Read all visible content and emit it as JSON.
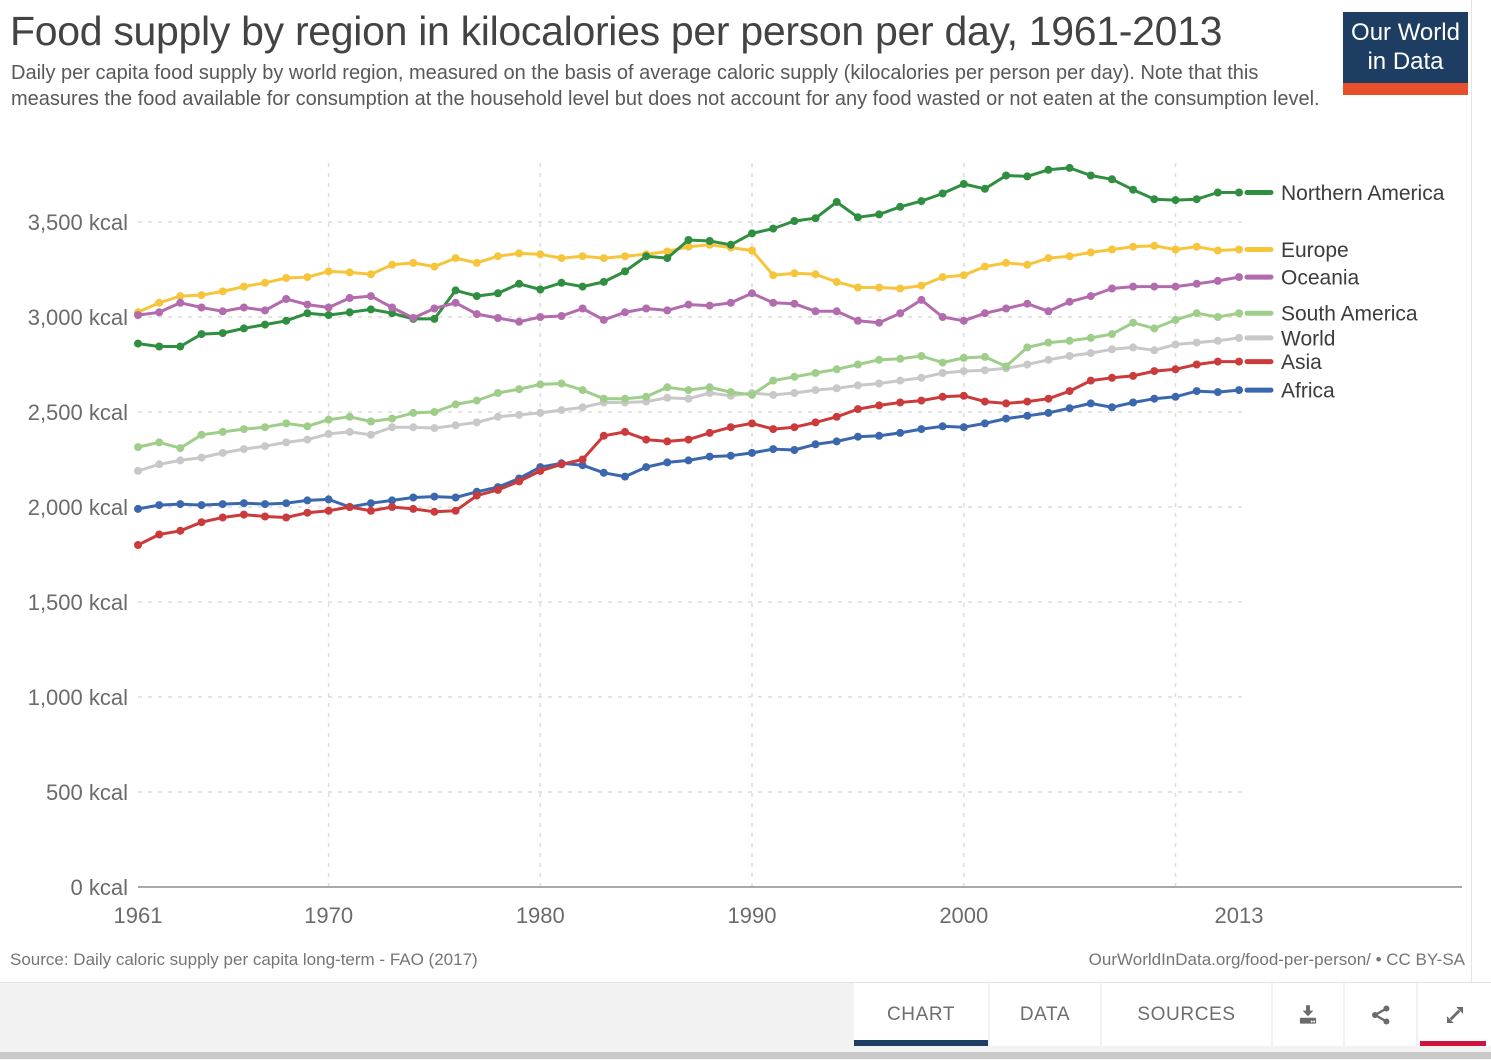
{
  "theme": {
    "navy": "#1D3D63",
    "logo_red": "#E8502B",
    "active_tab_underline": "#1D3D63",
    "expand_underline": "#D0123F",
    "gridline_color": "#DCDCDC",
    "axis_color": "#A9A9A9",
    "tick_text_color": "#6B6B6B",
    "legend_text_color": "#3C3C3C"
  },
  "header": {
    "title": "Food supply by region in kilocalories per person per day, 1961-2013",
    "subtitle": "Daily per capita food supply by world region, measured on the basis of average caloric supply (kilocalories per person per day). Note that this measures the food available for consumption at the household level but does not account for any food wasted or not eaten at the consumption level.",
    "logo": {
      "line1": "Our World",
      "line2": "in Data"
    }
  },
  "chart_data": {
    "type": "line",
    "title": "Food supply by region in kilocalories per person per day, 1961-2013",
    "xlabel": "",
    "ylabel": "kilocalories per person per day",
    "unit": "kcal",
    "ylim": [
      0,
      3790
    ],
    "x_range": [
      1961,
      2013
    ],
    "grid": true,
    "legend_position": "right",
    "y_ticks": [
      {
        "value": 3500,
        "label": "3,500 kcal"
      },
      {
        "value": 3000,
        "label": "3,000 kcal"
      },
      {
        "value": 2500,
        "label": "2,500 kcal"
      },
      {
        "value": 2000,
        "label": "2,000 kcal"
      },
      {
        "value": 1500,
        "label": "1,500 kcal"
      },
      {
        "value": 1000,
        "label": "1,000 kcal"
      },
      {
        "value": 500,
        "label": "500 kcal"
      },
      {
        "value": 0,
        "label": "0 kcal"
      }
    ],
    "x_ticks": [
      {
        "value": 1961,
        "label": "1961"
      },
      {
        "value": 1970,
        "label": "1970"
      },
      {
        "value": 1980,
        "label": "1980"
      },
      {
        "value": 1990,
        "label": "1990"
      },
      {
        "value": 2000,
        "label": "2000"
      },
      {
        "value": 2013,
        "label": "2013"
      }
    ],
    "x_gridline_years": [
      1970,
      1980,
      1990,
      2000,
      2010
    ],
    "years": [
      1961,
      1962,
      1963,
      1964,
      1965,
      1966,
      1967,
      1968,
      1969,
      1970,
      1971,
      1972,
      1973,
      1974,
      1975,
      1976,
      1977,
      1978,
      1979,
      1980,
      1981,
      1982,
      1983,
      1984,
      1985,
      1986,
      1987,
      1988,
      1989,
      1990,
      1991,
      1992,
      1993,
      1994,
      1995,
      1996,
      1997,
      1998,
      1999,
      2000,
      2001,
      2002,
      2003,
      2004,
      2005,
      2006,
      2007,
      2008,
      2009,
      2010,
      2011,
      2012,
      2013
    ],
    "series": [
      {
        "name": "Northern America",
        "color": "#2F8E3F",
        "values": [
          2860,
          2845,
          2845,
          2910,
          2915,
          2940,
          2960,
          2980,
          3020,
          3010,
          3025,
          3040,
          3020,
          2990,
          2990,
          3140,
          3110,
          3125,
          3175,
          3145,
          3180,
          3160,
          3185,
          3240,
          3320,
          3310,
          3405,
          3400,
          3380,
          3440,
          3465,
          3505,
          3520,
          3605,
          3525,
          3540,
          3580,
          3610,
          3650,
          3700,
          3675,
          3745,
          3740,
          3775,
          3785,
          3745,
          3725,
          3670,
          3620,
          3615,
          3620,
          3655,
          3655
        ]
      },
      {
        "name": "Europe",
        "color": "#F7C53C",
        "values": [
          3025,
          3075,
          3110,
          3115,
          3135,
          3160,
          3180,
          3205,
          3210,
          3240,
          3235,
          3225,
          3275,
          3285,
          3265,
          3310,
          3285,
          3320,
          3335,
          3330,
          3310,
          3320,
          3310,
          3320,
          3330,
          3345,
          3370,
          3380,
          3365,
          3350,
          3220,
          3230,
          3225,
          3185,
          3155,
          3155,
          3150,
          3165,
          3210,
          3220,
          3265,
          3285,
          3275,
          3310,
          3320,
          3340,
          3355,
          3370,
          3375,
          3355,
          3370,
          3350,
          3355
        ]
      },
      {
        "name": "Oceania",
        "color": "#B26BAD",
        "values": [
          3010,
          3025,
          3075,
          3050,
          3030,
          3050,
          3035,
          3095,
          3065,
          3050,
          3100,
          3110,
          3050,
          2995,
          3045,
          3075,
          3015,
          2995,
          2975,
          3000,
          3005,
          3045,
          2985,
          3025,
          3045,
          3035,
          3065,
          3060,
          3075,
          3125,
          3075,
          3070,
          3030,
          3030,
          2980,
          2970,
          3020,
          3090,
          3000,
          2980,
          3020,
          3045,
          3070,
          3030,
          3080,
          3110,
          3150,
          3160,
          3160,
          3160,
          3175,
          3190,
          3210
        ]
      },
      {
        "name": "South America",
        "color": "#9ECE8A",
        "values": [
          2315,
          2340,
          2310,
          2380,
          2395,
          2410,
          2420,
          2440,
          2425,
          2460,
          2475,
          2450,
          2465,
          2495,
          2500,
          2540,
          2560,
          2600,
          2620,
          2645,
          2650,
          2615,
          2570,
          2570,
          2580,
          2630,
          2615,
          2630,
          2605,
          2590,
          2665,
          2685,
          2705,
          2725,
          2750,
          2775,
          2780,
          2795,
          2760,
          2785,
          2790,
          2740,
          2840,
          2865,
          2875,
          2890,
          2910,
          2970,
          2940,
          2985,
          3020,
          3000,
          3020
        ]
      },
      {
        "name": "World",
        "color": "#C8C8C8",
        "values": [
          2190,
          2225,
          2245,
          2260,
          2285,
          2305,
          2320,
          2340,
          2355,
          2385,
          2395,
          2380,
          2420,
          2420,
          2415,
          2430,
          2445,
          2475,
          2485,
          2495,
          2510,
          2525,
          2550,
          2550,
          2555,
          2575,
          2570,
          2600,
          2585,
          2600,
          2590,
          2600,
          2615,
          2625,
          2640,
          2650,
          2665,
          2680,
          2705,
          2715,
          2720,
          2730,
          2750,
          2775,
          2795,
          2810,
          2830,
          2840,
          2825,
          2855,
          2865,
          2875,
          2890
        ]
      },
      {
        "name": "Asia",
        "color": "#CB3B3B",
        "values": [
          1800,
          1855,
          1875,
          1920,
          1945,
          1960,
          1950,
          1945,
          1970,
          1980,
          2000,
          1980,
          2000,
          1990,
          1975,
          1980,
          2060,
          2090,
          2135,
          2190,
          2225,
          2250,
          2375,
          2395,
          2355,
          2345,
          2355,
          2390,
          2420,
          2440,
          2410,
          2420,
          2445,
          2475,
          2515,
          2535,
          2550,
          2560,
          2580,
          2585,
          2555,
          2545,
          2555,
          2570,
          2610,
          2665,
          2680,
          2690,
          2715,
          2725,
          2750,
          2765,
          2765
        ]
      },
      {
        "name": "Africa",
        "color": "#3B67AE",
        "values": [
          1990,
          2010,
          2015,
          2010,
          2015,
          2020,
          2015,
          2020,
          2035,
          2040,
          2000,
          2020,
          2035,
          2050,
          2055,
          2050,
          2080,
          2105,
          2150,
          2210,
          2230,
          2220,
          2180,
          2160,
          2210,
          2235,
          2245,
          2265,
          2270,
          2285,
          2305,
          2300,
          2330,
          2345,
          2370,
          2375,
          2390,
          2410,
          2425,
          2420,
          2440,
          2465,
          2480,
          2495,
          2520,
          2545,
          2525,
          2550,
          2570,
          2580,
          2610,
          2605,
          2615
        ]
      }
    ],
    "draw_order": [
      "Europe",
      "Northern America",
      "Oceania",
      "World",
      "South America",
      "Africa",
      "Asia"
    ]
  },
  "footer": {
    "source": "Source: Daily caloric supply per capita long-term - FAO (2017)",
    "attribution": "OurWorldInData.org/food-per-person/ • CC BY-SA",
    "tabs": [
      {
        "label": "CHART",
        "active": true
      },
      {
        "label": "DATA",
        "active": false
      },
      {
        "label": "SOURCES",
        "active": false
      }
    ],
    "icon_buttons": [
      "download-icon",
      "share-icon",
      "expand-icon"
    ]
  }
}
